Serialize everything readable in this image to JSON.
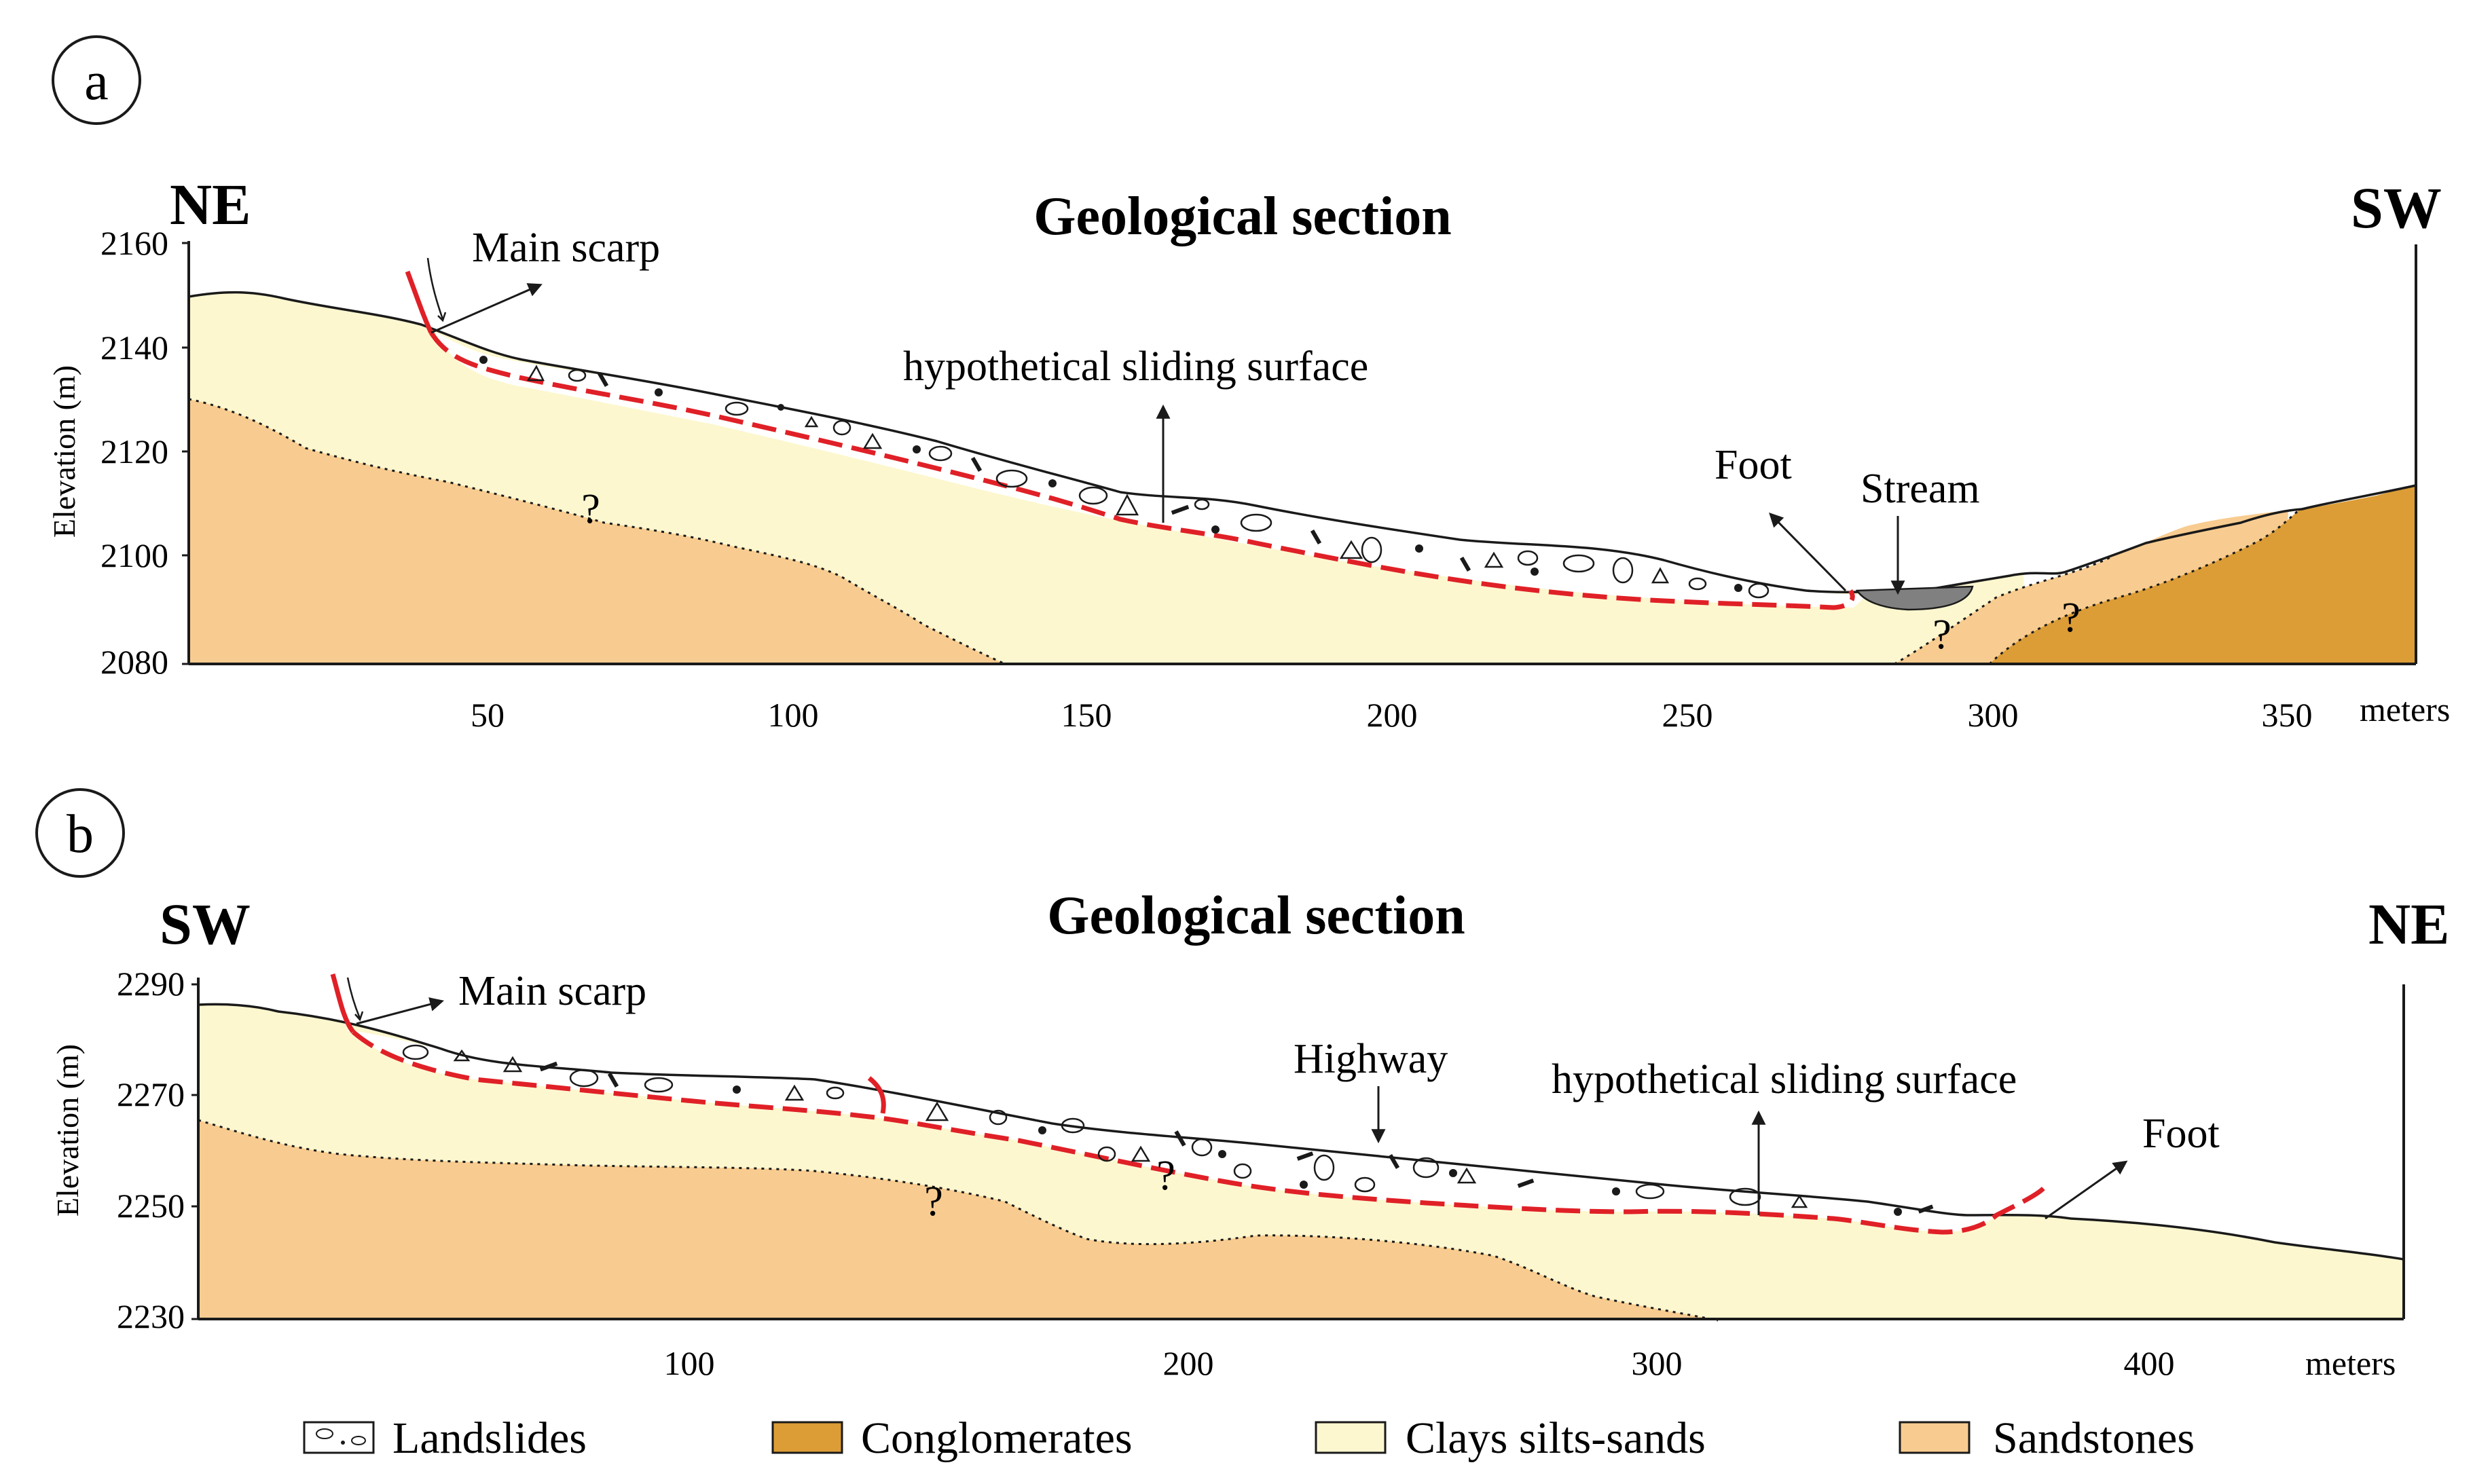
{
  "colors": {
    "landslide": "#ffffff",
    "clays": "#fdf7cf",
    "sandstones": "#f8cc90",
    "conglomerates": "#dc9d36",
    "sliding_surface": "#e02027",
    "stream": "#808080",
    "outline": "#1a1a1a"
  },
  "panel_a": {
    "label": "a",
    "left_dir": "NE",
    "right_dir": "SW",
    "title": "Geological section",
    "y_axis_label": "Elevation (m)",
    "y_ticks": [
      "2160",
      "2140",
      "2120",
      "2100",
      "2080"
    ],
    "x_ticks": [
      "50",
      "100",
      "150",
      "200",
      "250",
      "300",
      "350"
    ],
    "x_unit": "meters",
    "annotations": {
      "main_scarp": "Main scarp",
      "sliding_surface": "hypothetical sliding surface",
      "foot": "Foot",
      "stream": "Stream",
      "question": "?"
    }
  },
  "panel_b": {
    "label": "b",
    "left_dir": "SW",
    "right_dir": "NE",
    "title": "Geological section",
    "y_axis_label": "Elevation (m)",
    "y_ticks": [
      "2290",
      "2270",
      "2250",
      "2230"
    ],
    "x_ticks": [
      "100",
      "200",
      "300",
      "400"
    ],
    "x_unit": "meters",
    "annotations": {
      "main_scarp": "Main scarp",
      "highway": "Highway",
      "sliding_surface": "hypothetical sliding surface",
      "foot": "Foot",
      "question": "?"
    }
  },
  "legend": [
    {
      "key": "landslides",
      "label": "Landslides"
    },
    {
      "key": "conglomerates",
      "label": "Conglomerates"
    },
    {
      "key": "clays",
      "label": "Clays silts-sands"
    },
    {
      "key": "sandstones",
      "label": "Sandstones"
    }
  ]
}
